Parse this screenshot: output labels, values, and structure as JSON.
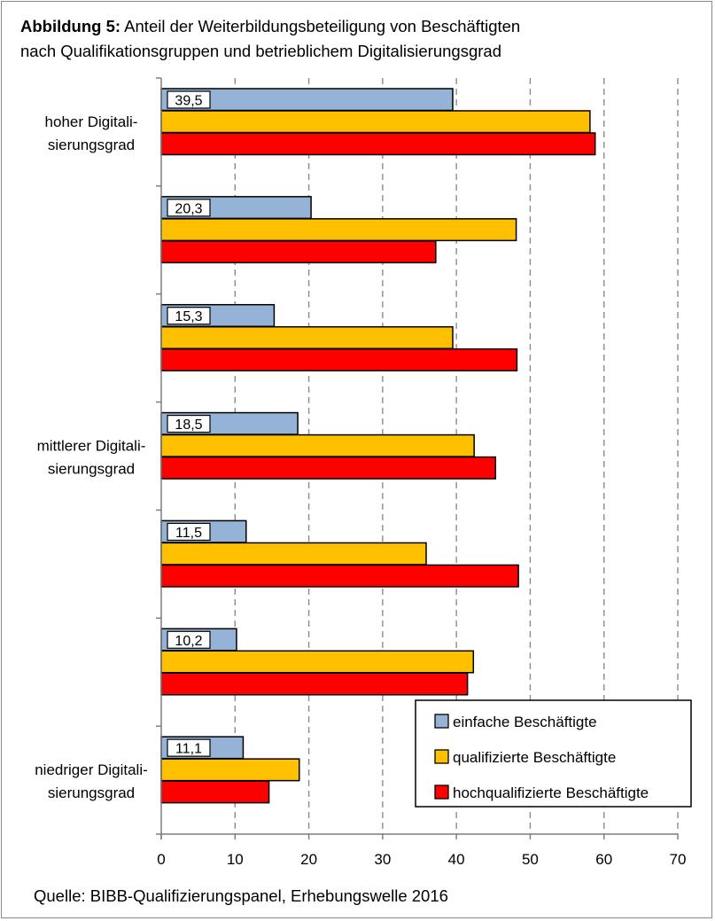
{
  "title": {
    "bold": "Abbildung 5:",
    "line1": "Anteil der Weiterbildungsbeteiligung von Beschäftigten",
    "line2": "nach Qualifikationsgruppen und betrieblichem Digitalisierungsgrad"
  },
  "source": "Quelle: BIBB-Qualifizierungspanel, Erhebungswelle 2016",
  "chart_data": {
    "type": "bar",
    "orientation": "horizontal",
    "xlim": [
      0,
      70
    ],
    "xticks": [
      "0",
      "10",
      "20",
      "30",
      "40",
      "50",
      "60",
      "70"
    ],
    "grid": "vertical dashed",
    "legend_position": "bottom-right",
    "category_labels": [
      [
        "hoher Digitali-",
        "sierungsgrad"
      ],
      [],
      [],
      [
        "mittlerer Digitali-",
        "sierungsgrad"
      ],
      [],
      [],
      [
        "niedriger Digitali-",
        "sierungsgrad"
      ]
    ],
    "series": [
      {
        "name": "einfache Beschäftigte",
        "color": "#95b3d7",
        "values": [
          39.5,
          20.3,
          15.3,
          18.5,
          11.5,
          10.2,
          11.1
        ]
      },
      {
        "name": "qualifizierte Beschäftigte",
        "color": "#ffc000",
        "values": [
          58.1,
          48.1,
          39.5,
          42.4,
          35.9,
          42.3,
          18.7
        ]
      },
      {
        "name": "hochqualifizierte Beschäftigte",
        "color": "#ff0000",
        "values": [
          58.8,
          37.2,
          48.2,
          45.3,
          48.4,
          41.5,
          14.6
        ]
      }
    ],
    "data_labels": [
      "39,5",
      "20,3",
      "15,3",
      "18,5",
      "11,5",
      "10,2",
      "11,1"
    ]
  }
}
